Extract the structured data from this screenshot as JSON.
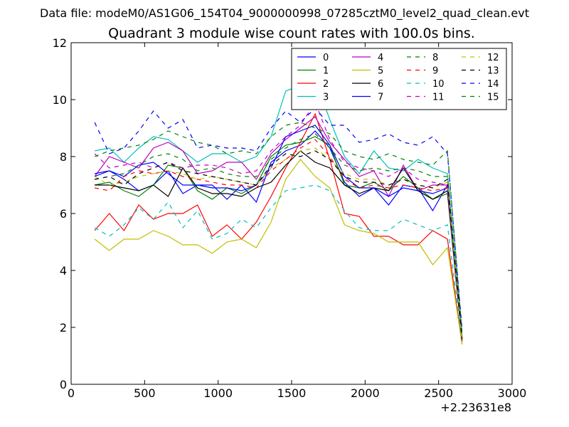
{
  "chart_data": {
    "type": "line",
    "suptitle": "Data file: modeM0/AS1G06_154T04_9000000998_07285cztM0_level2_quad_clean.evt",
    "title": "Quadrant 3 module wise count rates with 100.0s bins.",
    "xlabel": "",
    "ylabel": "",
    "x_offset_label": "+2.23631e8",
    "xlim": [
      0,
      3000
    ],
    "ylim": [
      0,
      12
    ],
    "xticks": [
      0,
      500,
      1000,
      1500,
      2000,
      2500,
      3000
    ],
    "yticks": [
      0,
      2,
      4,
      6,
      8,
      10,
      12
    ],
    "grid": false,
    "legend": "top-right",
    "legend_columns": 4,
    "x": [
      160,
      260,
      360,
      460,
      560,
      660,
      760,
      860,
      960,
      1060,
      1160,
      1260,
      1360,
      1460,
      1560,
      1660,
      1760,
      1860,
      1960,
      2060,
      2160,
      2260,
      2360,
      2460,
      2560,
      2660
    ],
    "series": [
      {
        "name": "0",
        "color": "#0000ff",
        "dash": "solid",
        "values": [
          7.3,
          7.5,
          7.2,
          6.8,
          7.0,
          7.5,
          6.7,
          7.0,
          7.0,
          6.5,
          7.0,
          6.4,
          7.8,
          8.2,
          8.4,
          8.9,
          8.3,
          7.1,
          6.6,
          6.9,
          6.3,
          7.0,
          6.9,
          6.1,
          7.0,
          1.5
        ]
      },
      {
        "name": "1",
        "color": "#008000",
        "dash": "solid",
        "values": [
          7.0,
          7.1,
          6.8,
          6.6,
          7.0,
          7.7,
          7.6,
          6.8,
          6.5,
          6.9,
          6.7,
          7.0,
          8.0,
          8.4,
          8.5,
          8.7,
          8.4,
          7.0,
          6.9,
          7.1,
          6.8,
          7.3,
          6.9,
          6.5,
          6.7,
          1.5
        ]
      },
      {
        "name": "2",
        "color": "#ff0000",
        "dash": "solid",
        "values": [
          5.4,
          6.0,
          5.4,
          6.3,
          5.8,
          6.0,
          6.0,
          6.3,
          5.2,
          5.6,
          5.1,
          5.7,
          6.6,
          7.6,
          8.5,
          9.5,
          7.9,
          6.0,
          5.9,
          5.2,
          5.2,
          4.9,
          4.9,
          5.4,
          5.1,
          1.4
        ]
      },
      {
        "name": "3",
        "color": "#00bfbf",
        "dash": "solid",
        "values": [
          8.2,
          8.3,
          7.8,
          8.3,
          8.7,
          8.6,
          8.2,
          7.8,
          8.1,
          8.1,
          7.8,
          8.0,
          8.7,
          10.3,
          10.5,
          10.7,
          9.3,
          8.0,
          7.4,
          8.2,
          7.6,
          7.5,
          7.9,
          7.6,
          7.4,
          1.7
        ]
      },
      {
        "name": "4",
        "color": "#bf00bf",
        "dash": "solid",
        "values": [
          7.3,
          8.0,
          7.8,
          7.6,
          8.3,
          8.5,
          8.2,
          7.4,
          7.5,
          7.8,
          7.8,
          7.2,
          8.1,
          8.6,
          9.0,
          9.4,
          8.5,
          7.9,
          7.3,
          7.5,
          6.6,
          7.7,
          6.8,
          7.0,
          7.0,
          1.6
        ]
      },
      {
        "name": "5",
        "color": "#bfbf00",
        "dash": "solid",
        "values": [
          5.1,
          4.7,
          5.1,
          5.1,
          5.4,
          5.2,
          4.9,
          4.9,
          4.6,
          5.0,
          5.1,
          4.8,
          5.7,
          7.2,
          7.9,
          7.3,
          6.9,
          5.6,
          5.4,
          5.3,
          5.0,
          5.0,
          5.0,
          4.2,
          4.8,
          1.4
        ]
      },
      {
        "name": "6",
        "color": "#000000",
        "dash": "solid",
        "values": [
          7.0,
          7.0,
          6.9,
          6.8,
          7.0,
          6.6,
          7.6,
          6.9,
          6.7,
          6.7,
          6.6,
          6.9,
          7.1,
          7.7,
          8.2,
          7.8,
          7.6,
          7.0,
          6.7,
          6.9,
          6.8,
          7.6,
          6.8,
          6.5,
          6.8,
          1.5
        ]
      },
      {
        "name": "7",
        "color": "#0000ff",
        "dash": "solid",
        "values": [
          7.4,
          7.5,
          7.3,
          7.7,
          7.8,
          7.4,
          7.0,
          7.0,
          6.9,
          6.9,
          6.8,
          7.0,
          7.6,
          8.7,
          8.9,
          9.1,
          8.4,
          7.3,
          6.9,
          6.9,
          6.6,
          6.9,
          6.8,
          6.7,
          6.9,
          1.5
        ]
      },
      {
        "name": "8",
        "color": "#008000",
        "dash": "dashed",
        "values": [
          7.2,
          7.3,
          7.4,
          7.7,
          8.0,
          8.1,
          7.9,
          7.5,
          7.6,
          7.4,
          7.3,
          7.3,
          7.9,
          8.3,
          8.6,
          8.8,
          8.3,
          7.7,
          7.5,
          7.6,
          7.5,
          7.6,
          7.5,
          7.3,
          7.3,
          1.6
        ]
      },
      {
        "name": "9",
        "color": "#ff0000",
        "dash": "dashed",
        "values": [
          6.9,
          6.8,
          7.3,
          7.5,
          7.4,
          7.5,
          7.3,
          7.2,
          7.1,
          7.0,
          7.0,
          6.9,
          7.5,
          7.9,
          8.3,
          8.6,
          8.0,
          7.2,
          6.9,
          7.0,
          6.9,
          7.0,
          6.9,
          6.8,
          6.9,
          1.5
        ]
      },
      {
        "name": "10",
        "color": "#00bfbf",
        "dash": "dashed",
        "values": [
          5.5,
          5.2,
          5.6,
          6.2,
          5.8,
          6.4,
          5.5,
          6.1,
          5.1,
          5.3,
          5.8,
          5.5,
          6.2,
          6.8,
          6.9,
          7.0,
          6.8,
          6.1,
          5.5,
          5.4,
          5.4,
          5.8,
          5.6,
          5.4,
          5.6,
          1.5
        ]
      },
      {
        "name": "11",
        "color": "#bf00bf",
        "dash": "dashed",
        "values": [
          8.1,
          7.6,
          7.7,
          7.8,
          7.6,
          7.8,
          7.6,
          7.7,
          7.7,
          7.6,
          7.4,
          7.5,
          8.2,
          8.7,
          9.1,
          9.9,
          8.6,
          7.8,
          7.6,
          7.5,
          7.3,
          7.6,
          7.2,
          7.1,
          7.0,
          1.6
        ]
      },
      {
        "name": "12",
        "color": "#bfbf00",
        "dash": "dashed",
        "values": [
          7.3,
          7.0,
          7.1,
          7.3,
          7.4,
          7.5,
          7.4,
          7.2,
          7.3,
          7.2,
          7.1,
          7.0,
          7.6,
          7.9,
          8.2,
          8.3,
          7.9,
          7.4,
          7.2,
          7.2,
          7.0,
          7.2,
          7.0,
          6.9,
          7.1,
          1.5
        ]
      },
      {
        "name": "13",
        "color": "#000000",
        "dash": "dashed",
        "values": [
          7.2,
          7.3,
          7.0,
          7.4,
          7.6,
          7.8,
          7.5,
          7.4,
          7.3,
          7.2,
          7.1,
          7.0,
          7.7,
          8.1,
          8.0,
          8.2,
          7.9,
          7.3,
          7.1,
          7.1,
          7.0,
          7.2,
          7.0,
          6.9,
          7.2,
          1.6
        ]
      },
      {
        "name": "14",
        "color": "#0000ff",
        "dash": "dashed",
        "values": [
          9.2,
          8.1,
          8.3,
          8.9,
          9.6,
          9.0,
          9.3,
          8.3,
          8.4,
          8.3,
          8.3,
          8.2,
          9.0,
          9.6,
          9.2,
          9.7,
          9.1,
          9.1,
          8.5,
          8.6,
          8.8,
          8.5,
          8.4,
          8.7,
          8.1,
          1.9
        ]
      },
      {
        "name": "15",
        "color": "#008000",
        "dash": "dashed",
        "values": [
          8.0,
          8.2,
          8.3,
          8.4,
          8.6,
          8.9,
          8.7,
          8.5,
          8.4,
          8.1,
          8.2,
          8.1,
          8.7,
          9.1,
          9.2,
          9.0,
          8.8,
          8.2,
          8.0,
          7.9,
          8.1,
          7.9,
          7.8,
          7.7,
          8.2,
          1.8
        ]
      }
    ]
  }
}
